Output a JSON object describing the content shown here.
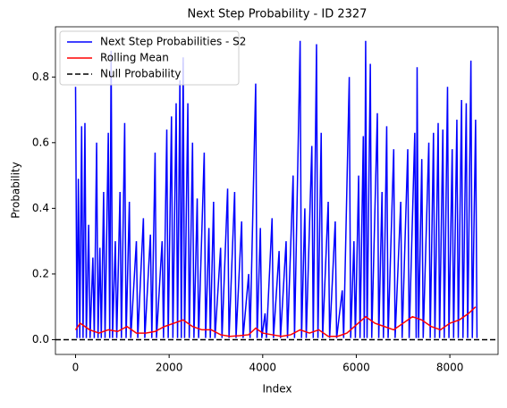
{
  "chart_data": {
    "type": "line",
    "title": "Next Step Probability - ID 2327",
    "xlabel": "Index",
    "ylabel": "Probability",
    "xlim": [
      -430,
      9030
    ],
    "ylim": [
      -0.045,
      0.953
    ],
    "xticks": [
      0,
      2000,
      4000,
      6000,
      8000
    ],
    "yticks": [
      {
        "value": 0,
        "label": "0.0"
      },
      0.2,
      0.4,
      0.6,
      0.8
    ],
    "legend": "upper left",
    "series": [
      {
        "name": "Next Step Probabilities - S2",
        "color": "#0000ff",
        "x": [
          0,
          30,
          60,
          90,
          130,
          160,
          200,
          230,
          280,
          310,
          370,
          400,
          450,
          480,
          520,
          550,
          600,
          630,
          700,
          730,
          760,
          790,
          850,
          880,
          950,
          980,
          1050,
          1080,
          1150,
          1180,
          1300,
          1330,
          1450,
          1480,
          1600,
          1630,
          1700,
          1730,
          1850,
          1880,
          1950,
          1980,
          2050,
          2080,
          2150,
          2180,
          2230,
          2260,
          2300,
          2330,
          2400,
          2430,
          2500,
          2530,
          2600,
          2630,
          2750,
          2780,
          2850,
          2880,
          2950,
          2980,
          3100,
          3130,
          3250,
          3280,
          3400,
          3430,
          3550,
          3580,
          3700,
          3730,
          3850,
          3880,
          3950,
          3980,
          4050,
          4080,
          4200,
          4230,
          4350,
          4380,
          4500,
          4530,
          4650,
          4680,
          4800,
          4830,
          4900,
          4930,
          5050,
          5080,
          5150,
          5180,
          5250,
          5280,
          5400,
          5430,
          5550,
          5580,
          5700,
          5730,
          5850,
          5880,
          5950,
          5980,
          6050,
          6080,
          6150,
          6170,
          6200,
          6230,
          6300,
          6330,
          6450,
          6480,
          6550,
          6580,
          6650,
          6680,
          6800,
          6830,
          6950,
          6980,
          7100,
          7130,
          7250,
          7280,
          7300,
          7330,
          7400,
          7430,
          7550,
          7580,
          7650,
          7680,
          7750,
          7780,
          7850,
          7880,
          7950,
          7980,
          8050,
          8080,
          8150,
          8180,
          8250,
          8280,
          8350,
          8380,
          8450,
          8480,
          8550,
          8580
        ],
        "values": [
          0.77,
          0.005,
          0.49,
          0.005,
          0.65,
          0.005,
          0.66,
          0.005,
          0.35,
          0.005,
          0.25,
          0.005,
          0.6,
          0.005,
          0.28,
          0.005,
          0.45,
          0.005,
          0.63,
          0.005,
          0.88,
          0.005,
          0.3,
          0.005,
          0.45,
          0.005,
          0.66,
          0.005,
          0.42,
          0.005,
          0.3,
          0.005,
          0.37,
          0.005,
          0.32,
          0.005,
          0.57,
          0.005,
          0.3,
          0.005,
          0.64,
          0.005,
          0.68,
          0.005,
          0.72,
          0.005,
          0.79,
          0.005,
          0.86,
          0.005,
          0.72,
          0.005,
          0.6,
          0.005,
          0.43,
          0.005,
          0.57,
          0.005,
          0.34,
          0.005,
          0.42,
          0.005,
          0.28,
          0.005,
          0.46,
          0.005,
          0.45,
          0.005,
          0.36,
          0.005,
          0.2,
          0.005,
          0.78,
          0.005,
          0.34,
          0.005,
          0.08,
          0.005,
          0.37,
          0.005,
          0.27,
          0.005,
          0.3,
          0.005,
          0.5,
          0.005,
          0.91,
          0.005,
          0.4,
          0.005,
          0.59,
          0.005,
          0.9,
          0.005,
          0.63,
          0.005,
          0.42,
          0.005,
          0.36,
          0.005,
          0.15,
          0.005,
          0.8,
          0.005,
          0.3,
          0.005,
          0.5,
          0.005,
          0.62,
          0.005,
          0.91,
          0.005,
          0.84,
          0.005,
          0.69,
          0.005,
          0.45,
          0.005,
          0.65,
          0.005,
          0.58,
          0.005,
          0.42,
          0.005,
          0.58,
          0.005,
          0.63,
          0.005,
          0.83,
          0.005,
          0.55,
          0.005,
          0.6,
          0.005,
          0.63,
          0.005,
          0.66,
          0.005,
          0.64,
          0.005,
          0.77,
          0.005,
          0.58,
          0.005,
          0.67,
          0.005,
          0.73,
          0.005,
          0.72,
          0.005,
          0.85,
          0.005,
          0.67,
          0.005
        ]
      },
      {
        "name": "Rolling Mean",
        "color": "#ff0000",
        "x": [
          0,
          100,
          300,
          500,
          700,
          900,
          1100,
          1300,
          1500,
          1700,
          1900,
          2100,
          2300,
          2500,
          2700,
          2900,
          3100,
          3300,
          3500,
          3700,
          3850,
          4000,
          4200,
          4400,
          4600,
          4800,
          5000,
          5200,
          5400,
          5600,
          5800,
          6000,
          6200,
          6400,
          6600,
          6800,
          7000,
          7200,
          7400,
          7600,
          7800,
          8000,
          8200,
          8400,
          8550
        ],
        "values": [
          0.03,
          0.05,
          0.03,
          0.02,
          0.03,
          0.025,
          0.04,
          0.02,
          0.02,
          0.025,
          0.04,
          0.05,
          0.06,
          0.04,
          0.03,
          0.03,
          0.015,
          0.01,
          0.012,
          0.015,
          0.035,
          0.02,
          0.015,
          0.01,
          0.015,
          0.03,
          0.02,
          0.03,
          0.01,
          0.01,
          0.02,
          0.045,
          0.07,
          0.05,
          0.04,
          0.03,
          0.05,
          0.07,
          0.06,
          0.04,
          0.03,
          0.05,
          0.06,
          0.08,
          0.1
        ]
      }
    ],
    "hline": {
      "name": "Null Probability",
      "color": "#000000",
      "value": 0
    }
  }
}
